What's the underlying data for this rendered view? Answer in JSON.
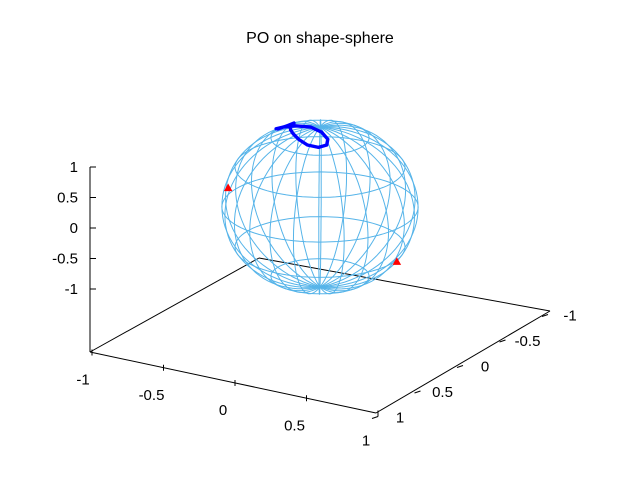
{
  "chart_data": {
    "type": "scatter",
    "title": "PO on shape-sphere",
    "xlabel": "",
    "ylabel": "",
    "zlabel": "",
    "xlim": [
      -1,
      1
    ],
    "ylim": [
      -1,
      1
    ],
    "zlim": [
      -1,
      1
    ],
    "x_ticks": [
      "-1",
      "-0.5",
      "0",
      "0.5",
      "1"
    ],
    "y_ticks": [
      "-1",
      "-0.5",
      "0",
      "0.5",
      "1"
    ],
    "z_ticks": [
      "1",
      "0.5",
      "0",
      "-0.5",
      "-1"
    ],
    "grid": false,
    "legend": "none",
    "projection": "3d",
    "colors": {
      "sphere": "#56b4e9",
      "orbit": "#0000ff",
      "markers": "#ff0000",
      "axes": "#000000"
    },
    "sphere": {
      "kind": "oblate wireframe",
      "parallels_at_z": [
        -0.866,
        -0.5,
        0,
        0.5,
        0.866
      ],
      "meridians": 12
    },
    "orbit": {
      "shape": "figure-eight",
      "points": [
        [
          -0.33,
          0.04,
          0.94
        ],
        [
          -0.27,
          0.13,
          0.95
        ],
        [
          -0.18,
          0.23,
          0.96
        ],
        [
          -0.06,
          0.32,
          0.95
        ],
        [
          0.07,
          0.37,
          0.93
        ],
        [
          0.19,
          0.35,
          0.92
        ],
        [
          0.24,
          0.27,
          0.93
        ],
        [
          0.2,
          0.18,
          0.96
        ],
        [
          0.08,
          0.1,
          0.99
        ],
        [
          -0.08,
          0.05,
          1.0
        ],
        [
          -0.28,
          0.02,
          0.96
        ],
        [
          -0.45,
          -0.02,
          0.89
        ],
        [
          -0.58,
          -0.1,
          0.81
        ],
        [
          -0.62,
          -0.2,
          0.76
        ],
        [
          -0.55,
          -0.27,
          0.79
        ],
        [
          -0.45,
          -0.23,
          0.86
        ],
        [
          -0.38,
          -0.12,
          0.92
        ],
        [
          -0.33,
          0.04,
          0.94
        ]
      ]
    },
    "markers": [
      {
        "x": -0.72,
        "y": 0.62,
        "z": 0.31
      },
      {
        "x": 0.78,
        "y": -0.22,
        "z": -0.59
      }
    ]
  }
}
